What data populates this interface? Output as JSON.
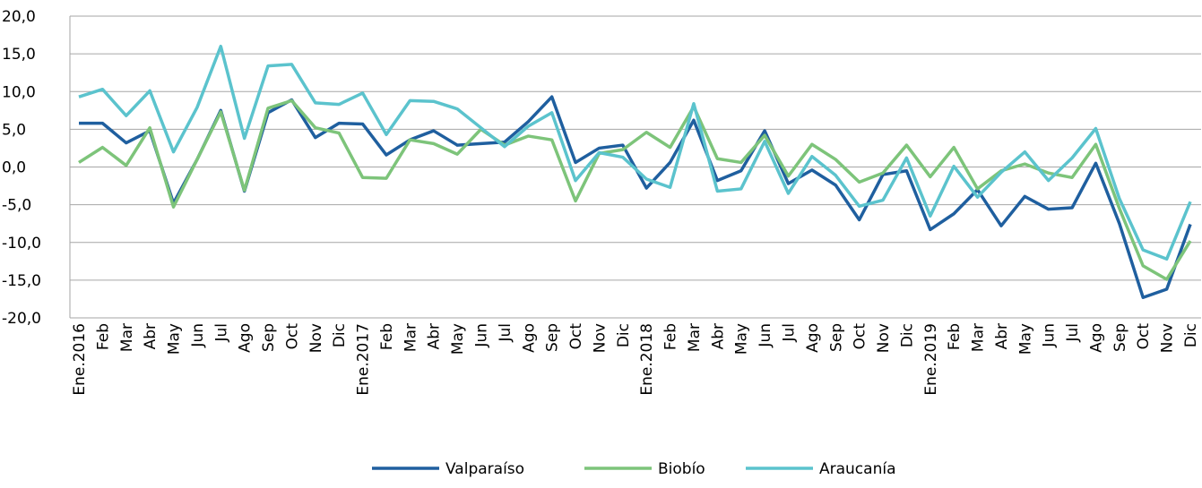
{
  "chart_data": {
    "type": "line",
    "categories": [
      "Ene.2016",
      "Feb",
      "Mar",
      "Abr",
      "May",
      "Jun",
      "Jul",
      "Ago",
      "Sep",
      "Oct",
      "Nov",
      "Dic",
      "Ene.2017",
      "Feb",
      "Mar",
      "Abr",
      "May",
      "Jun",
      "Jul",
      "Ago",
      "Sep",
      "Oct",
      "Nov",
      "Dic",
      "Ene.2018",
      "Feb",
      "Mar",
      "Abr",
      "May",
      "Jun",
      "Jul",
      "Ago",
      "Sep",
      "Oct",
      "Nov",
      "Dic",
      "Ene.2019",
      "Feb",
      "Mar",
      "Abr",
      "May",
      "Jun",
      "Jul",
      "Ago",
      "Sep",
      "Oct",
      "Nov",
      "Dic"
    ],
    "series": [
      {
        "name": "Valparaíso",
        "color": "#1f5f9f",
        "values": [
          5.8,
          5.8,
          3.2,
          4.8,
          -4.8,
          1.0,
          7.5,
          -3.2,
          7.2,
          8.9,
          3.9,
          5.8,
          5.7,
          1.6,
          3.6,
          4.8,
          2.9,
          3.1,
          3.3,
          6.0,
          9.3,
          0.6,
          2.5,
          2.9,
          -2.8,
          0.6,
          6.2,
          -1.8,
          -0.5,
          4.8,
          -2.2,
          -0.4,
          -2.4,
          -7.0,
          -1.0,
          -0.5,
          -8.3,
          -6.2,
          -3.0,
          -7.8,
          -3.9,
          -5.6,
          -5.4,
          0.5,
          -7.5,
          -17.3,
          -16.2,
          -7.6
        ]
      },
      {
        "name": "Biobío",
        "color": "#7dc47a",
        "values": [
          0.6,
          2.6,
          0.2,
          5.2,
          -5.3,
          1.0,
          7.3,
          -3.1,
          7.8,
          8.8,
          5.2,
          4.5,
          -1.4,
          -1.5,
          3.6,
          3.1,
          1.7,
          5.0,
          2.9,
          4.1,
          3.6,
          -4.5,
          1.8,
          2.3,
          4.6,
          2.6,
          8.0,
          1.1,
          0.6,
          4.2,
          -1.2,
          3.0,
          1.0,
          -2.0,
          -0.8,
          2.9,
          -1.3,
          2.6,
          -2.9,
          -0.5,
          0.4,
          -0.8,
          -1.4,
          3.0,
          -5.5,
          -13.1,
          -14.9,
          -9.8
        ]
      },
      {
        "name": "Araucanía",
        "color": "#5bc3cd",
        "values": [
          9.3,
          10.3,
          6.8,
          10.1,
          2.0,
          7.9,
          16.0,
          3.8,
          13.4,
          13.6,
          8.5,
          8.3,
          9.8,
          4.3,
          8.8,
          8.7,
          7.7,
          5.2,
          2.7,
          5.4,
          7.2,
          -1.8,
          1.9,
          1.3,
          -1.6,
          -2.7,
          8.4,
          -3.2,
          -2.9,
          3.4,
          -3.5,
          1.4,
          -1.1,
          -5.2,
          -4.4,
          1.2,
          -6.5,
          0.1,
          -4.0,
          -0.7,
          2.0,
          -1.8,
          1.2,
          5.1,
          -4.2,
          -11.0,
          -12.2,
          -4.6
        ]
      }
    ],
    "ylim": [
      -20,
      20
    ],
    "yticks": [
      {
        "value": -20,
        "label": "-20,0"
      },
      {
        "value": -15,
        "label": "-15,0"
      },
      {
        "value": -10,
        "label": "-10,0"
      },
      {
        "value": -5,
        "label": "-5,0"
      },
      {
        "value": 0,
        "label": "0,0"
      },
      {
        "value": 5,
        "label": "5,0"
      },
      {
        "value": 10,
        "label": "10,0"
      },
      {
        "value": 15,
        "label": "15,0"
      },
      {
        "value": 20,
        "label": "20,0"
      }
    ],
    "grid": true,
    "legend": "bottom"
  }
}
